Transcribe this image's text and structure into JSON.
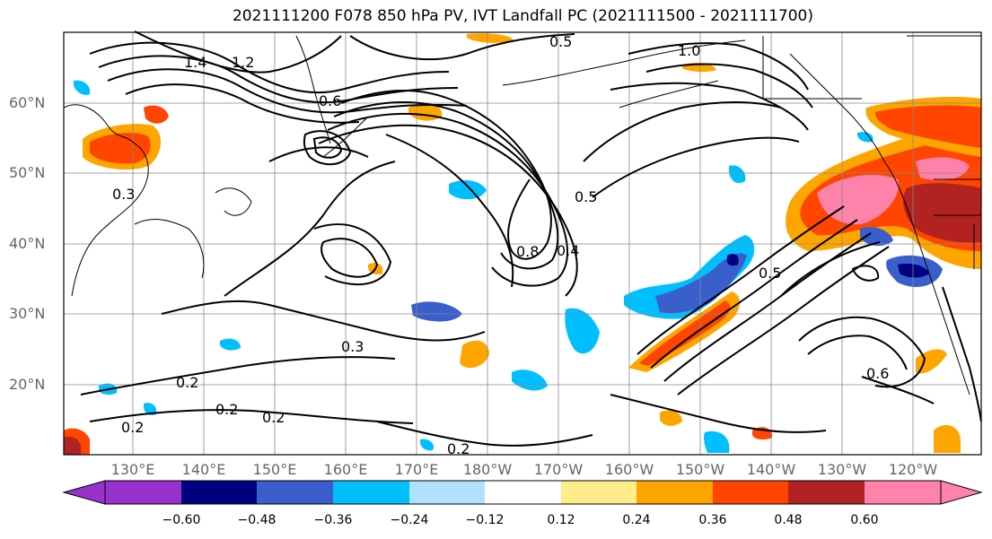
{
  "title": "2021111200 F078 850 hPa PV, IVT Landfall PC (2021111500 - 2021111700)",
  "lat_labels": [
    "60°N",
    "50°N",
    "40°N",
    "30°N",
    "20°N"
  ],
  "lon_labels": [
    "130°E",
    "140°E",
    "150°E",
    "160°E",
    "170°E",
    "180°W",
    "170°W",
    "160°W",
    "150°W",
    "140°W",
    "130°W",
    "120°W"
  ],
  "colorbar": {
    "ticks": [
      "−0.60",
      "−0.48",
      "−0.36",
      "−0.24",
      "−0.12",
      "0.12",
      "0.24",
      "0.36",
      "0.48",
      "0.60"
    ],
    "colors": [
      "#9932CC",
      "#000080",
      "#3A5FCD",
      "#00BFFF",
      "#B0E2FF",
      "#FFFFFF",
      "#FFEC8B",
      "#FFA500",
      "#FF4500",
      "#B22222",
      "#FF82AB"
    ]
  },
  "contour_labels": [
    "0.5",
    "1.0",
    "1.4",
    "1.2",
    "0.6",
    "0.3",
    "0.8",
    "0.5",
    "0.4",
    "0.3",
    "0.2",
    "0.2",
    "0.2",
    "0.6",
    "0.2",
    "0.2",
    "0.5"
  ]
}
